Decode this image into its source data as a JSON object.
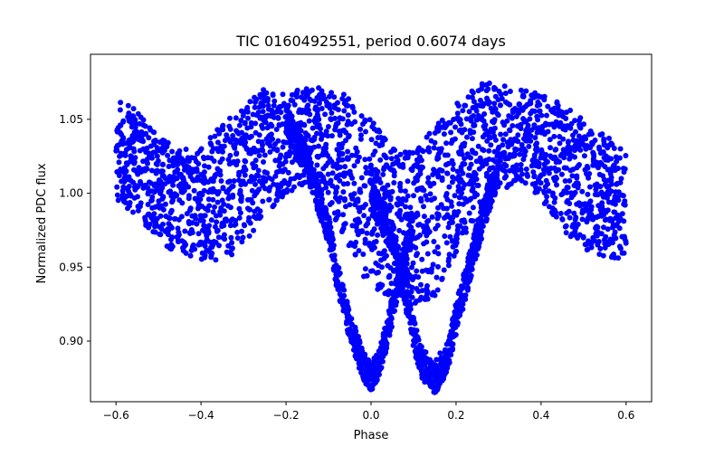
{
  "chart_data": {
    "type": "scatter",
    "title": "TIC 0160492551, period 0.6074 days",
    "xlabel": "Phase",
    "ylabel": "Normalized PDC flux",
    "xlim": [
      -0.66,
      0.66
    ],
    "ylim": [
      0.859,
      1.094
    ],
    "xticks": [
      -0.6,
      -0.4,
      -0.2,
      0.0,
      0.2,
      0.4,
      0.6
    ],
    "xtick_labels": [
      "−0.6",
      "−0.4",
      "−0.2",
      "0.0",
      "0.2",
      "0.4",
      "0.6"
    ],
    "yticks": [
      0.9,
      0.95,
      1.0,
      1.05
    ],
    "ytick_labels": [
      "0.90",
      "0.95",
      "1.00",
      "1.05"
    ],
    "grid": false,
    "legend": "none",
    "marker_color": "#0000ff",
    "series": [
      {
        "band_upper": {
          "x": [
            -0.6,
            -0.55,
            -0.5,
            -0.45,
            -0.4,
            -0.35,
            -0.3,
            -0.25,
            -0.2,
            -0.15,
            -0.1,
            -0.05,
            0.0,
            0.05,
            0.1,
            0.15,
            0.2,
            0.25,
            0.3,
            0.35,
            0.4,
            0.45,
            0.5,
            0.55,
            0.6
          ],
          "y": [
            1.068,
            1.055,
            1.04,
            1.03,
            1.03,
            1.048,
            1.058,
            1.072,
            1.068,
            1.073,
            1.07,
            1.066,
            1.05,
            1.03,
            1.03,
            1.045,
            1.06,
            1.075,
            1.074,
            1.07,
            1.068,
            1.06,
            1.05,
            1.04,
            1.03
          ]
        },
        "band_lower": {
          "x": [
            -0.6,
            -0.55,
            -0.5,
            -0.45,
            -0.4,
            -0.35,
            -0.3,
            -0.25,
            -0.2,
            -0.15,
            -0.1,
            -0.05,
            0.0,
            0.05,
            0.1,
            0.15,
            0.2,
            0.25,
            0.3,
            0.35,
            0.4,
            0.45,
            0.5,
            0.55,
            0.6
          ],
          "y": [
            0.995,
            0.985,
            0.968,
            0.958,
            0.955,
            0.953,
            0.965,
            0.985,
            1.0,
            1.005,
            0.99,
            0.96,
            0.935,
            0.93,
            0.925,
            0.93,
            0.96,
            0.985,
            1.0,
            1.008,
            0.995,
            0.975,
            0.962,
            0.957,
            0.955
          ]
        },
        "primary_dip": {
          "x": [
            -0.2,
            -0.15,
            -0.1,
            -0.08,
            -0.05,
            -0.02,
            0.0,
            0.02,
            0.05,
            0.08,
            0.1
          ],
          "y": [
            1.05,
            1.02,
            0.975,
            0.945,
            0.91,
            0.885,
            0.875,
            0.885,
            0.92,
            0.96,
            0.985
          ]
        },
        "secondary_dip": {
          "x": [
            0.0,
            0.05,
            0.08,
            0.1,
            0.12,
            0.15,
            0.18,
            0.2,
            0.25,
            0.3
          ],
          "y": [
            1.0,
            0.97,
            0.935,
            0.905,
            0.885,
            0.875,
            0.89,
            0.915,
            0.97,
            1.02
          ]
        }
      }
    ]
  }
}
